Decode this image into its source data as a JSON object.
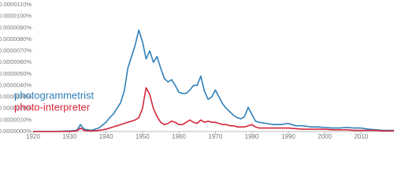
{
  "chart_data": {
    "type": "line",
    "x": [
      1920,
      1925,
      1930,
      1932,
      1933,
      1934,
      1936,
      1938,
      1940,
      1941,
      1942,
      1943,
      1944,
      1945,
      1946,
      1947,
      1948,
      1949,
      1950,
      1951,
      1952,
      1953,
      1954,
      1955,
      1956,
      1957,
      1958,
      1959,
      1960,
      1961,
      1962,
      1963,
      1964,
      1965,
      1966,
      1967,
      1968,
      1969,
      1970,
      1971,
      1972,
      1973,
      1974,
      1975,
      1976,
      1977,
      1978,
      1979,
      1980,
      1981,
      1982,
      1984,
      1986,
      1988,
      1990,
      1992,
      1994,
      1996,
      1998,
      2000,
      2002,
      2004,
      2006,
      2008,
      2010,
      2012,
      2014,
      2016,
      2018,
      2019
    ],
    "series": [
      {
        "name": "photogrammetrist",
        "color": "#2f7fb8",
        "values": [
          0,
          0,
          5e-08,
          1e-07,
          6e-07,
          2e-07,
          1e-07,
          3e-07,
          8e-07,
          1.2e-06,
          1.5e-06,
          2e-06,
          2.5e-06,
          3.5e-06,
          5.5e-06,
          6.5e-06,
          7.5e-06,
          8.8e-06,
          7.8e-06,
          6.3e-06,
          7e-06,
          6e-06,
          6.5e-06,
          5.5e-06,
          4.6e-06,
          4.3e-06,
          4.5e-06,
          4e-06,
          3.4e-06,
          3.3e-06,
          3.3e-06,
          3.6e-06,
          4e-06,
          4e-06,
          4.8e-06,
          3.5e-06,
          2.8e-06,
          3e-06,
          3.6e-06,
          3e-06,
          2.4e-06,
          2e-06,
          1.7e-06,
          1.4e-06,
          1.2e-06,
          1.1e-06,
          1.3e-06,
          2.1e-06,
          1.5e-06,
          9e-07,
          8e-07,
          7e-07,
          6e-07,
          6e-07,
          7e-07,
          5e-07,
          5e-07,
          4e-07,
          4e-07,
          3.5e-07,
          3e-07,
          3e-07,
          3.5e-07,
          3e-07,
          3e-07,
          2e-07,
          1.5e-07,
          1e-07,
          1e-07,
          1e-07
        ]
      },
      {
        "name": "photo-interpreter",
        "color": "#d6263b",
        "values": [
          0,
          0,
          0,
          5e-08,
          3e-07,
          1e-07,
          5e-08,
          1e-07,
          2e-07,
          3e-07,
          4e-07,
          5e-07,
          6e-07,
          7e-07,
          8e-07,
          9e-07,
          1e-06,
          1.2e-06,
          2e-06,
          3.8e-06,
          3.2e-06,
          2e-06,
          1.3e-06,
          8e-07,
          6e-07,
          7e-07,
          9e-07,
          8e-07,
          6e-07,
          6e-07,
          8e-07,
          1e-06,
          8e-07,
          7e-07,
          1e-06,
          8e-07,
          9e-07,
          8e-07,
          8e-07,
          7e-07,
          6e-07,
          6e-07,
          5e-07,
          5e-07,
          4e-07,
          4e-07,
          4e-07,
          5e-07,
          6e-07,
          4e-07,
          3e-07,
          3e-07,
          3e-07,
          3e-07,
          3e-07,
          2.5e-07,
          2e-07,
          2e-07,
          2e-07,
          2e-07,
          1.5e-07,
          1.5e-07,
          1.5e-07,
          1e-07,
          1e-07,
          1e-07,
          1e-07,
          5e-08,
          5e-08,
          5e-08
        ]
      }
    ],
    "xlim": [
      1920,
      2019
    ],
    "xticks": [
      1920,
      1930,
      1940,
      1950,
      1960,
      1970,
      1980,
      1990,
      2000,
      2010
    ],
    "ylim": [
      0,
      1.1e-05
    ],
    "yticks": [
      {
        "value": 0,
        "label": "0.0000000%"
      },
      {
        "value": 1e-06,
        "label": "0.0000010%"
      },
      {
        "value": 2e-06,
        "label": "0.0000020%"
      },
      {
        "value": 3e-06,
        "label": "0.0000030%"
      },
      {
        "value": 4e-06,
        "label": "0.0000040%"
      },
      {
        "value": 5e-06,
        "label": "0.0000050%"
      },
      {
        "value": 6e-06,
        "label": "0.0000060%"
      },
      {
        "value": 7e-06,
        "label": "0.0000070%"
      },
      {
        "value": 8e-06,
        "label": "0.0000080%"
      },
      {
        "value": 9e-06,
        "label": "0.0000090%"
      },
      {
        "value": 1e-05,
        "label": "0.0000100%"
      },
      {
        "value": 1.1e-05,
        "label": "0.0000110%"
      }
    ],
    "grid": false
  }
}
